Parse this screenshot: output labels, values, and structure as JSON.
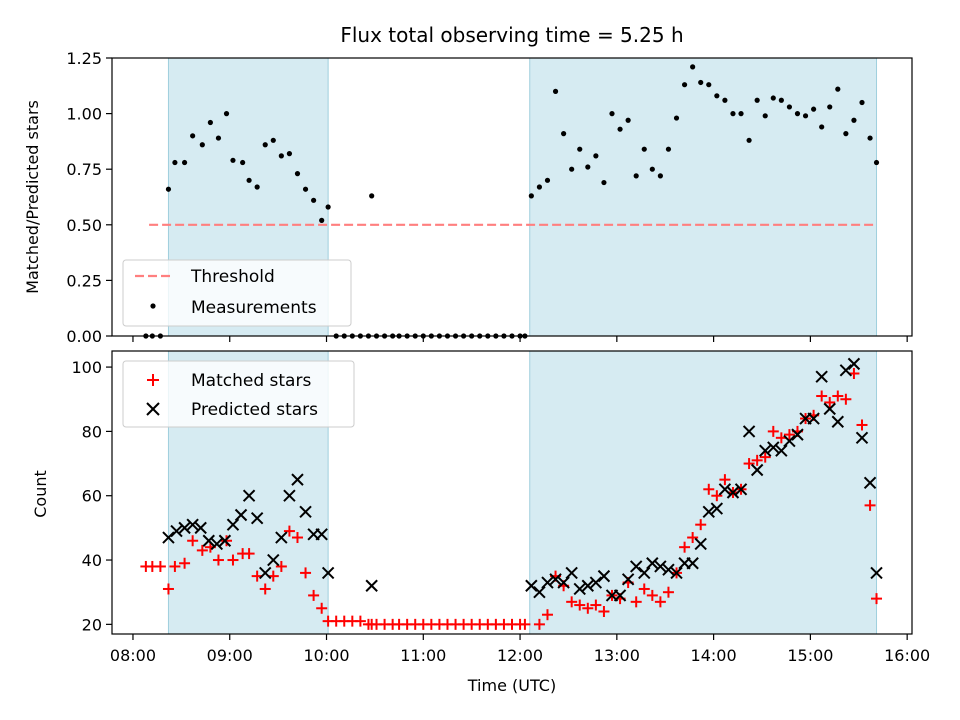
{
  "chart_data": [
    {
      "type": "scatter",
      "title": "Flux total observing time = 5.25 h",
      "xlabel": "",
      "ylabel": "Matched/Predicted stars",
      "ylim": [
        0,
        1.25
      ],
      "yticks": [
        "0.00",
        "0.25",
        "0.50",
        "0.75",
        "1.00",
        "1.25"
      ],
      "shaded_intervals": [
        [
          "08:22",
          "10:01"
        ],
        [
          "12:06",
          "15:41"
        ]
      ],
      "threshold": {
        "name": "Threshold",
        "y": 0.5,
        "x_range": [
          "08:10",
          "15:40"
        ],
        "color": "#ff7f7f"
      },
      "legend": {
        "position": "lower-left",
        "entries": [
          "Threshold",
          "Measurements"
        ]
      },
      "series": [
        {
          "name": "Measurements",
          "color": "#000000",
          "points": [
            [
              "08:08",
              0.0
            ],
            [
              "08:12",
              0.0
            ],
            [
              "08:17",
              0.0
            ],
            [
              "08:22",
              0.66
            ],
            [
              "08:26",
              0.78
            ],
            [
              "08:32",
              0.78
            ],
            [
              "08:37",
              0.9
            ],
            [
              "08:43",
              0.86
            ],
            [
              "08:48",
              0.96
            ],
            [
              "08:53",
              0.89
            ],
            [
              "08:58",
              1.0
            ],
            [
              "09:02",
              0.79
            ],
            [
              "09:08",
              0.78
            ],
            [
              "09:12",
              0.7
            ],
            [
              "09:17",
              0.67
            ],
            [
              "09:22",
              0.86
            ],
            [
              "09:27",
              0.88
            ],
            [
              "09:32",
              0.81
            ],
            [
              "09:37",
              0.82
            ],
            [
              "09:42",
              0.73
            ],
            [
              "09:47",
              0.66
            ],
            [
              "09:52",
              0.61
            ],
            [
              "09:57",
              0.52
            ],
            [
              "10:01",
              0.58
            ],
            [
              "10:06",
              0.0
            ],
            [
              "10:11",
              0.0
            ],
            [
              "10:16",
              0.0
            ],
            [
              "10:21",
              0.0
            ],
            [
              "10:26",
              0.0
            ],
            [
              "10:28",
              0.63
            ],
            [
              "10:31",
              0.0
            ],
            [
              "10:36",
              0.0
            ],
            [
              "10:41",
              0.0
            ],
            [
              "10:45",
              0.0
            ],
            [
              "10:50",
              0.0
            ],
            [
              "10:55",
              0.0
            ],
            [
              "11:00",
              0.0
            ],
            [
              "11:05",
              0.0
            ],
            [
              "11:10",
              0.0
            ],
            [
              "11:15",
              0.0
            ],
            [
              "11:20",
              0.0
            ],
            [
              "11:25",
              0.0
            ],
            [
              "11:30",
              0.0
            ],
            [
              "11:35",
              0.0
            ],
            [
              "11:40",
              0.0
            ],
            [
              "11:45",
              0.0
            ],
            [
              "11:50",
              0.0
            ],
            [
              "11:55",
              0.0
            ],
            [
              "12:00",
              0.0
            ],
            [
              "12:03",
              0.0
            ],
            [
              "12:07",
              0.63
            ],
            [
              "12:12",
              0.67
            ],
            [
              "12:17",
              0.7
            ],
            [
              "12:22",
              1.1
            ],
            [
              "12:27",
              0.91
            ],
            [
              "12:32",
              0.75
            ],
            [
              "12:37",
              0.84
            ],
            [
              "12:42",
              0.76
            ],
            [
              "12:47",
              0.81
            ],
            [
              "12:52",
              0.69
            ],
            [
              "12:57",
              1.0
            ],
            [
              "13:02",
              0.93
            ],
            [
              "13:07",
              0.97
            ],
            [
              "13:12",
              0.72
            ],
            [
              "13:17",
              0.84
            ],
            [
              "13:22",
              0.75
            ],
            [
              "13:27",
              0.72
            ],
            [
              "13:32",
              0.84
            ],
            [
              "13:37",
              0.98
            ],
            [
              "13:42",
              1.13
            ],
            [
              "13:47",
              1.21
            ],
            [
              "13:52",
              1.14
            ],
            [
              "13:57",
              1.13
            ],
            [
              "14:02",
              1.08
            ],
            [
              "14:07",
              1.06
            ],
            [
              "14:12",
              1.0
            ],
            [
              "14:17",
              1.0
            ],
            [
              "14:22",
              0.88
            ],
            [
              "14:27",
              1.06
            ],
            [
              "14:32",
              0.99
            ],
            [
              "14:37",
              1.07
            ],
            [
              "14:42",
              1.06
            ],
            [
              "14:47",
              1.03
            ],
            [
              "14:52",
              1.0
            ],
            [
              "14:57",
              0.99
            ],
            [
              "15:02",
              1.02
            ],
            [
              "15:07",
              0.94
            ],
            [
              "15:12",
              1.03
            ],
            [
              "15:17",
              1.11
            ],
            [
              "15:22",
              0.91
            ],
            [
              "15:27",
              0.97
            ],
            [
              "15:32",
              1.05
            ],
            [
              "15:37",
              0.89
            ],
            [
              "15:41",
              0.78
            ]
          ]
        }
      ]
    },
    {
      "type": "scatter",
      "xlabel": "Time (UTC)",
      "ylabel": "Count",
      "ylim": [
        17,
        105
      ],
      "yticks": [
        "20",
        "40",
        "60",
        "80",
        "100"
      ],
      "xticks": [
        "08:00",
        "09:00",
        "10:00",
        "11:00",
        "12:00",
        "13:00",
        "14:00",
        "15:00",
        "16:00"
      ],
      "xlim": [
        "07:47",
        "16:03"
      ],
      "shaded_intervals": [
        [
          "08:22",
          "10:01"
        ],
        [
          "12:06",
          "15:41"
        ]
      ],
      "legend": {
        "position": "top-left",
        "entries": [
          "Matched stars",
          "Predicted stars"
        ]
      },
      "series": [
        {
          "name": "Matched stars",
          "marker": "plus",
          "color": "#ff0000",
          "points": [
            [
              "08:08",
              38
            ],
            [
              "08:12",
              38
            ],
            [
              "08:17",
              38
            ],
            [
              "08:22",
              31
            ],
            [
              "08:26",
              38
            ],
            [
              "08:32",
              39
            ],
            [
              "08:37",
              46
            ],
            [
              "08:43",
              43
            ],
            [
              "08:48",
              44
            ],
            [
              "08:53",
              40
            ],
            [
              "08:58",
              46
            ],
            [
              "09:02",
              40
            ],
            [
              "09:08",
              42
            ],
            [
              "09:12",
              42
            ],
            [
              "09:17",
              35
            ],
            [
              "09:22",
              31
            ],
            [
              "09:27",
              35
            ],
            [
              "09:32",
              38
            ],
            [
              "09:37",
              49
            ],
            [
              "09:42",
              47
            ],
            [
              "09:47",
              36
            ],
            [
              "09:52",
              29
            ],
            [
              "09:57",
              25
            ],
            [
              "10:01",
              21
            ],
            [
              "10:06",
              21
            ],
            [
              "10:11",
              21
            ],
            [
              "10:16",
              21
            ],
            [
              "10:21",
              21
            ],
            [
              "10:26",
              20
            ],
            [
              "10:28",
              20
            ],
            [
              "10:31",
              20
            ],
            [
              "10:36",
              20
            ],
            [
              "10:41",
              20
            ],
            [
              "10:45",
              20
            ],
            [
              "10:50",
              20
            ],
            [
              "10:55",
              20
            ],
            [
              "11:00",
              20
            ],
            [
              "11:05",
              20
            ],
            [
              "11:10",
              20
            ],
            [
              "11:15",
              20
            ],
            [
              "11:20",
              20
            ],
            [
              "11:25",
              20
            ],
            [
              "11:30",
              20
            ],
            [
              "11:35",
              20
            ],
            [
              "11:40",
              20
            ],
            [
              "11:45",
              20
            ],
            [
              "11:50",
              20
            ],
            [
              "11:55",
              20
            ],
            [
              "12:00",
              20
            ],
            [
              "12:03",
              20
            ],
            [
              "12:12",
              20
            ],
            [
              "12:17",
              23
            ],
            [
              "12:22",
              35
            ],
            [
              "12:27",
              32
            ],
            [
              "12:32",
              27
            ],
            [
              "12:37",
              26
            ],
            [
              "12:42",
              25
            ],
            [
              "12:47",
              26
            ],
            [
              "12:52",
              24
            ],
            [
              "12:57",
              29
            ],
            [
              "13:02",
              28
            ],
            [
              "13:07",
              33
            ],
            [
              "13:12",
              27
            ],
            [
              "13:17",
              31
            ],
            [
              "13:22",
              29
            ],
            [
              "13:27",
              27
            ],
            [
              "13:32",
              30
            ],
            [
              "13:37",
              36
            ],
            [
              "13:42",
              44
            ],
            [
              "13:47",
              47
            ],
            [
              "13:52",
              51
            ],
            [
              "13:57",
              62
            ],
            [
              "14:02",
              60
            ],
            [
              "14:07",
              65
            ],
            [
              "14:12",
              61
            ],
            [
              "14:17",
              62
            ],
            [
              "14:22",
              70
            ],
            [
              "14:27",
              71
            ],
            [
              "14:32",
              72
            ],
            [
              "14:37",
              80
            ],
            [
              "14:42",
              78
            ],
            [
              "14:47",
              79
            ],
            [
              "14:52",
              80
            ],
            [
              "14:57",
              84
            ],
            [
              "15:02",
              85
            ],
            [
              "15:07",
              91
            ],
            [
              "15:12",
              89
            ],
            [
              "15:17",
              91
            ],
            [
              "15:22",
              90
            ],
            [
              "15:27",
              98
            ],
            [
              "15:32",
              82
            ],
            [
              "15:37",
              57
            ],
            [
              "15:41",
              28
            ]
          ]
        },
        {
          "name": "Predicted stars",
          "marker": "x",
          "color": "#000000",
          "points": [
            [
              "08:22",
              47
            ],
            [
              "08:27",
              49
            ],
            [
              "08:32",
              50
            ],
            [
              "08:37",
              51
            ],
            [
              "08:42",
              50
            ],
            [
              "08:47",
              46
            ],
            [
              "08:52",
              45
            ],
            [
              "08:57",
              46
            ],
            [
              "09:02",
              51
            ],
            [
              "09:07",
              54
            ],
            [
              "09:12",
              60
            ],
            [
              "09:17",
              53
            ],
            [
              "09:22",
              36
            ],
            [
              "09:27",
              40
            ],
            [
              "09:32",
              47
            ],
            [
              "09:37",
              60
            ],
            [
              "09:42",
              65
            ],
            [
              "09:47",
              55
            ],
            [
              "09:52",
              48
            ],
            [
              "09:57",
              48
            ],
            [
              "10:01",
              36
            ],
            [
              "10:28",
              32
            ],
            [
              "12:07",
              32
            ],
            [
              "12:12",
              30
            ],
            [
              "12:17",
              33
            ],
            [
              "12:22",
              34
            ],
            [
              "12:27",
              33
            ],
            [
              "12:32",
              36
            ],
            [
              "12:37",
              31
            ],
            [
              "12:42",
              32
            ],
            [
              "12:47",
              33
            ],
            [
              "12:52",
              35
            ],
            [
              "12:57",
              29
            ],
            [
              "13:02",
              29
            ],
            [
              "13:07",
              34
            ],
            [
              "13:12",
              38
            ],
            [
              "13:17",
              36
            ],
            [
              "13:22",
              39
            ],
            [
              "13:27",
              38
            ],
            [
              "13:32",
              37
            ],
            [
              "13:37",
              36
            ],
            [
              "13:42",
              39
            ],
            [
              "13:47",
              39
            ],
            [
              "13:52",
              45
            ],
            [
              "13:57",
              55
            ],
            [
              "14:02",
              56
            ],
            [
              "14:07",
              62
            ],
            [
              "14:12",
              61
            ],
            [
              "14:17",
              62
            ],
            [
              "14:22",
              80
            ],
            [
              "14:27",
              68
            ],
            [
              "14:32",
              74
            ],
            [
              "14:37",
              75
            ],
            [
              "14:42",
              74
            ],
            [
              "14:47",
              77
            ],
            [
              "14:52",
              79
            ],
            [
              "14:57",
              84
            ],
            [
              "15:02",
              84
            ],
            [
              "15:07",
              97
            ],
            [
              "15:12",
              87
            ],
            [
              "15:17",
              83
            ],
            [
              "15:22",
              99
            ],
            [
              "15:27",
              101
            ],
            [
              "15:32",
              78
            ],
            [
              "15:37",
              64
            ],
            [
              "15:41",
              36
            ]
          ]
        }
      ]
    }
  ]
}
